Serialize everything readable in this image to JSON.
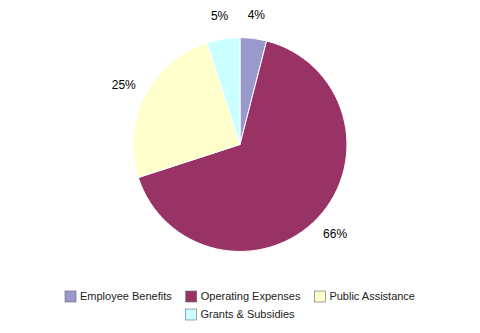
{
  "chart_data": {
    "type": "pie",
    "categories": [
      "Employee Benefits",
      "Operating Expenses",
      "Public Assistance",
      "Grants & Subsidies"
    ],
    "values": [
      4,
      66,
      25,
      5
    ],
    "value_labels": [
      "4%",
      "66%",
      "25%",
      "5%"
    ],
    "colors": [
      "#9999cc",
      "#993366",
      "#ffffcc",
      "#ccffff"
    ],
    "data_labels": true,
    "legend": "bottom"
  }
}
